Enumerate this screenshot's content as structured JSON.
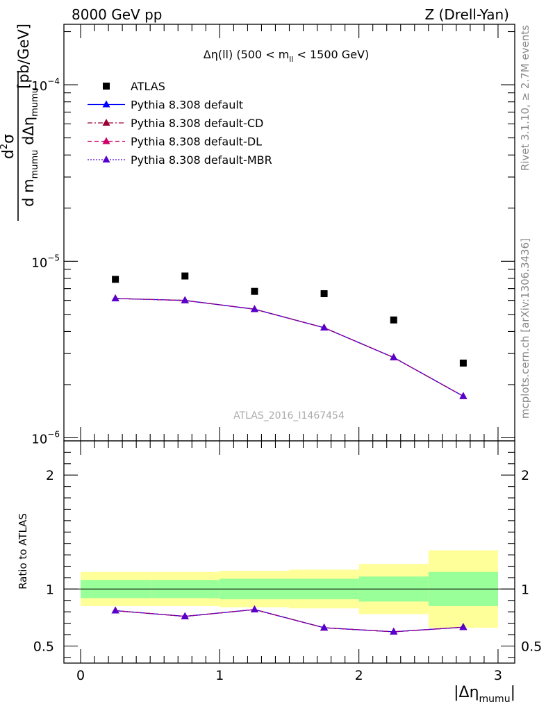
{
  "header": {
    "left": "8000 GeV pp",
    "right": "Z (Drell-Yan)"
  },
  "side_labels": {
    "rivet": "Rivet 3.1.10, ≥ 2.7M events",
    "mcplots": "mcplots.cern.ch [arXiv:1306.3436]"
  },
  "watermark": "ATLAS_2016_I1467454",
  "chart_data": [
    {
      "type": "scatter",
      "panel": "main",
      "title": "Δη(ll) (500 < m_ll < 1500 GeV)",
      "title_parts": {
        "main": "Δη(ll) (500 < m",
        "sub": "ll",
        "tail": " < 1500 GeV)"
      },
      "ylabel": "d²σ / d m_mumu dΔη_mumu [pb/GeV]",
      "ylabel_parts": {
        "num_d": "d",
        "num_sup": "2",
        "num_sigma": "σ",
        "den_1": "d m",
        "den_sub1": "mumu",
        "den_2": " dΔη",
        "den_sub2": "mumu",
        "unit": "[pb/GeV]"
      },
      "yscale": "log",
      "xlim": [
        -0.12,
        3.12
      ],
      "ylim": [
        9.6e-07,
        0.00022
      ],
      "yticks": [
        {
          "base": "10",
          "exp": "−6",
          "value": 1e-06
        },
        {
          "base": "10",
          "exp": "−5",
          "value": 1e-05
        },
        {
          "base": "10",
          "exp": "−4",
          "value": 0.0001
        }
      ],
      "legend_position": "top-left",
      "x": [
        0.25,
        0.75,
        1.25,
        1.75,
        2.25,
        2.75
      ],
      "series": [
        {
          "name": "ATLAS",
          "values": [
            7.9e-06,
            8.25e-06,
            6.75e-06,
            6.55e-06,
            4.65e-06,
            2.65e-06
          ],
          "color": "#000000",
          "marker": "square",
          "line": "none"
        },
        {
          "name": "Pythia 8.308 default",
          "values": [
            6.15e-06,
            6e-06,
            5.35e-06,
            4.2e-06,
            2.85e-06,
            1.72e-06
          ],
          "color": "#0000ff",
          "marker": "triangle",
          "line": "solid"
        },
        {
          "name": "Pythia 8.308 default-CD",
          "values": [
            6.15e-06,
            6e-06,
            5.35e-06,
            4.2e-06,
            2.85e-06,
            1.72e-06
          ],
          "color": "#990033",
          "marker": "triangle",
          "line": "dashdot"
        },
        {
          "name": "Pythia 8.308 default-DL",
          "values": [
            6.15e-06,
            6e-06,
            5.35e-06,
            4.2e-06,
            2.85e-06,
            1.72e-06
          ],
          "color": "#cc0066",
          "marker": "triangle",
          "line": "dashed"
        },
        {
          "name": "Pythia 8.308 default-MBR",
          "values": [
            6.15e-06,
            6e-06,
            5.35e-06,
            4.2e-06,
            2.85e-06,
            1.72e-06
          ],
          "color": "#5500cc",
          "marker": "triangle",
          "line": "dotted"
        }
      ]
    },
    {
      "type": "line",
      "panel": "ratio",
      "ylabel": "Ratio to ATLAS",
      "xlabel": "|Δη_mumu|",
      "xlabel_parts": {
        "main": "|Δη",
        "sub": "mumu",
        "tail": "|"
      },
      "yscale": "linear",
      "xlim": [
        -0.12,
        3.12
      ],
      "ylim": [
        0.35,
        2.3
      ],
      "xticks": [
        0,
        1,
        2,
        3
      ],
      "xtick_labels": [
        "0",
        "1",
        "2",
        "3"
      ],
      "yticks": [
        0.5,
        1,
        2
      ],
      "ytick_labels": [
        "0.5",
        "1",
        "2"
      ],
      "band_edges": [
        0,
        0.5,
        1.0,
        1.5,
        2.0,
        2.5,
        3.0
      ],
      "band_stat": [
        [
          0.92,
          1.08
        ],
        [
          0.92,
          1.08
        ],
        [
          0.91,
          1.09
        ],
        [
          0.91,
          1.09
        ],
        [
          0.89,
          1.11
        ],
        [
          0.85,
          1.15
        ]
      ],
      "band_total": [
        [
          0.85,
          1.15
        ],
        [
          0.85,
          1.15
        ],
        [
          0.84,
          1.16
        ],
        [
          0.83,
          1.17
        ],
        [
          0.78,
          1.22
        ],
        [
          0.66,
          1.34
        ]
      ],
      "band_colors": {
        "stat": "#99ff99",
        "total": "#ffff99"
      },
      "x": [
        0.25,
        0.75,
        1.25,
        1.75,
        2.25,
        2.75
      ],
      "series": [
        {
          "name": "Pythia 8.308 default",
          "values": [
            0.81,
            0.76,
            0.82,
            0.66,
            0.625,
            0.665
          ],
          "color": "#0000ff",
          "line": "solid"
        },
        {
          "name": "Pythia 8.308 default-CD",
          "values": [
            0.81,
            0.76,
            0.82,
            0.66,
            0.625,
            0.665
          ],
          "color": "#990033",
          "line": "dashdot"
        },
        {
          "name": "Pythia 8.308 default-DL",
          "values": [
            0.81,
            0.76,
            0.82,
            0.66,
            0.625,
            0.665
          ],
          "color": "#cc0066",
          "line": "dashed"
        },
        {
          "name": "Pythia 8.308 default-MBR",
          "values": [
            0.81,
            0.76,
            0.82,
            0.66,
            0.625,
            0.665
          ],
          "color": "#5500cc",
          "line": "dotted"
        }
      ]
    }
  ]
}
